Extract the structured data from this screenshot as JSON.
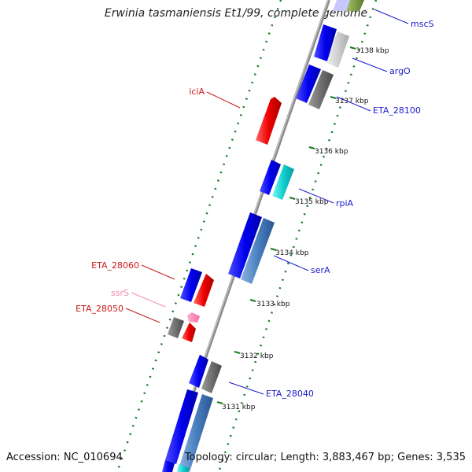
{
  "title": "Erwinia tasmaniensis Et1/99, complete genome",
  "accession": "Accession: NC_010694",
  "summary": "Topology: circular; Length: 3,883,467 bp; Genes: 3,535",
  "colors": {
    "backbone": "#8c8c8c",
    "tick": "#1a7a1a",
    "forward_label": "#1a1acc",
    "reverse_label": "#cc1a1a",
    "rna_label": "#f08cb0"
  },
  "ticks": [
    {
      "label": "3138 kbp"
    },
    {
      "label": "3137 kbp"
    },
    {
      "label": "3136 kbp"
    },
    {
      "label": "3135 kbp"
    },
    {
      "label": "3134 kbp"
    },
    {
      "label": "3133 kbp"
    },
    {
      "label": "3132 kbp"
    },
    {
      "label": "3131 kbp"
    }
  ],
  "gene_labels": [
    {
      "text": "mscS",
      "strand": "forward"
    },
    {
      "text": "argO",
      "strand": "forward"
    },
    {
      "text": "ETA_28100",
      "strand": "forward"
    },
    {
      "text": "rpiA",
      "strand": "forward"
    },
    {
      "text": "serA",
      "strand": "forward"
    },
    {
      "text": "ETA_28040",
      "strand": "forward"
    },
    {
      "text": "iciA",
      "strand": "reverse"
    },
    {
      "text": "ETA_28060",
      "strand": "reverse"
    },
    {
      "text": "ssrS",
      "strand": "rna"
    },
    {
      "text": "ETA_28050",
      "strand": "reverse"
    }
  ]
}
